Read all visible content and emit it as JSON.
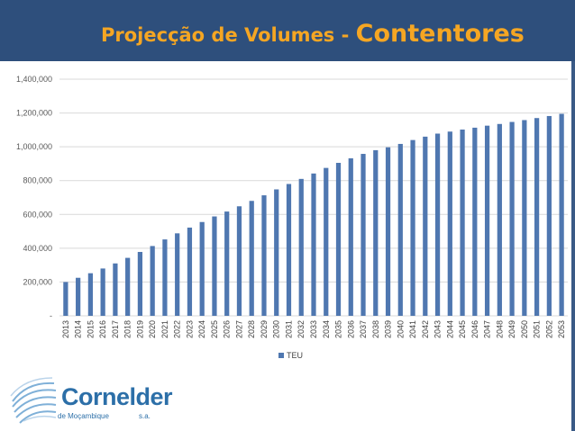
{
  "header": {
    "title_part1": "Projecção de Volumes - ",
    "title_part2": "Contentores"
  },
  "logo": {
    "name": "Cornelder",
    "subtitle": "de Moçambique",
    "suffix": "s.a."
  },
  "colors": {
    "banner": "#2e4f7c",
    "title": "#f5a623",
    "bar": "#4f77b0",
    "grid": "#d9d9d9"
  },
  "chart_data": {
    "type": "bar",
    "categories": [
      "2013",
      "2014",
      "2015",
      "2016",
      "2017",
      "2018",
      "2019",
      "2020",
      "2021",
      "2022",
      "2023",
      "2024",
      "2025",
      "2026",
      "2027",
      "2028",
      "2029",
      "2030",
      "2031",
      "2032",
      "2033",
      "2034",
      "2035",
      "2036",
      "2037",
      "2038",
      "2039",
      "2040",
      "2041",
      "2042",
      "2043",
      "2044",
      "2045",
      "2046",
      "2047",
      "2048",
      "2049",
      "2050",
      "2051",
      "2052",
      "2053"
    ],
    "series": [
      {
        "name": "TEU",
        "values": [
          200000,
          225000,
          252000,
          280000,
          310000,
          343000,
          378000,
          413000,
          452000,
          488000,
          522000,
          555000,
          588000,
          617000,
          648000,
          680000,
          713000,
          748000,
          780000,
          810000,
          842000,
          875000,
          905000,
          932000,
          958000,
          980000,
          997000,
          1017000,
          1040000,
          1060000,
          1078000,
          1090000,
          1102000,
          1113000,
          1125000,
          1135000,
          1147000,
          1158000,
          1170000,
          1182000,
          1195000
        ]
      }
    ],
    "yticks": [
      "-",
      "200,000",
      "400,000",
      "600,000",
      "800,000",
      "1,000,000",
      "1,200,000",
      "1,400,000"
    ],
    "ylim": [
      0,
      1400000
    ],
    "grid": true,
    "legend": "bottom"
  }
}
